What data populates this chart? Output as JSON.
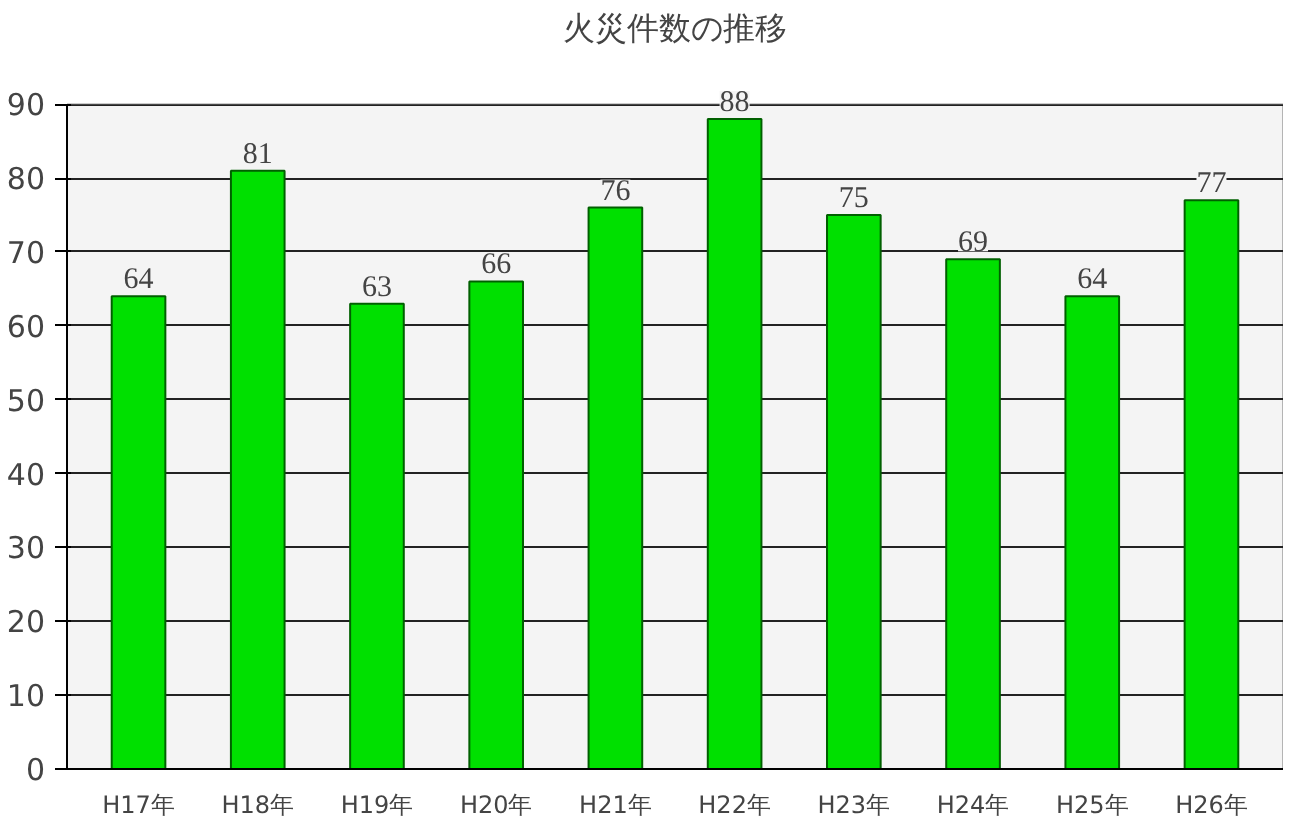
{
  "chart_data": {
    "type": "bar",
    "title": "火災件数の推移",
    "categories": [
      "H17年",
      "H18年",
      "H19年",
      "H20年",
      "H21年",
      "H22年",
      "H23年",
      "H24年",
      "H25年",
      "H26年"
    ],
    "values": [
      64,
      81,
      63,
      66,
      76,
      88,
      75,
      69,
      64,
      77
    ],
    "color": "#00e000",
    "ylim": [
      0,
      90
    ],
    "yticks": [
      0,
      10,
      20,
      30,
      40,
      50,
      60,
      70,
      80,
      90
    ],
    "grid": "y",
    "data_labels": true
  }
}
